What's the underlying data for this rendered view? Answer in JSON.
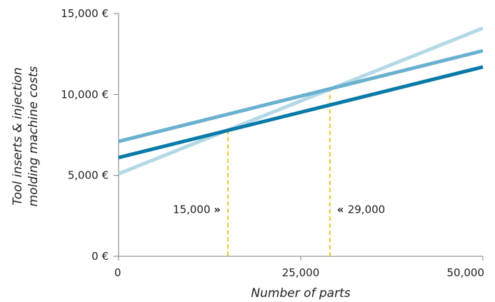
{
  "chart_data": {
    "type": "line",
    "title": "",
    "xlabel": "Number of parts",
    "ylabel_line1": "Tool inserts & injection",
    "ylabel_line2": "molding machine costs",
    "xlim": [
      0,
      50000
    ],
    "ylim": [
      0,
      15000
    ],
    "x_ticks": [
      0,
      25000,
      50000
    ],
    "x_tick_labels": [
      "0",
      "25,000",
      "50,000"
    ],
    "y_ticks": [
      0,
      5000,
      10000,
      15000
    ],
    "y_tick_labels": [
      "0 €",
      "5,000 €",
      "10,000 €",
      "15,000 €"
    ],
    "grid": false,
    "legend": "none",
    "series": [
      {
        "color": "#b3d8e6",
        "x": [
          0,
          50000
        ],
        "y": [
          5100,
          14100
        ]
      },
      {
        "color": "#6ab0cf",
        "x": [
          0,
          50000
        ],
        "y": [
          7100,
          12700
        ]
      },
      {
        "color": "#0a7aa8",
        "x": [
          0,
          50000
        ],
        "y": [
          6100,
          11700
        ]
      }
    ],
    "annotations": [
      {
        "x": 15000,
        "y": 7800,
        "label_value": "15,000",
        "mark": "»",
        "side": "left",
        "color": "#f0c419"
      },
      {
        "x": 29000,
        "y": 10400,
        "label_value": "29,000",
        "mark": "«",
        "side": "right",
        "color": "#f0c419"
      }
    ],
    "annotation_label_y": 2900
  }
}
